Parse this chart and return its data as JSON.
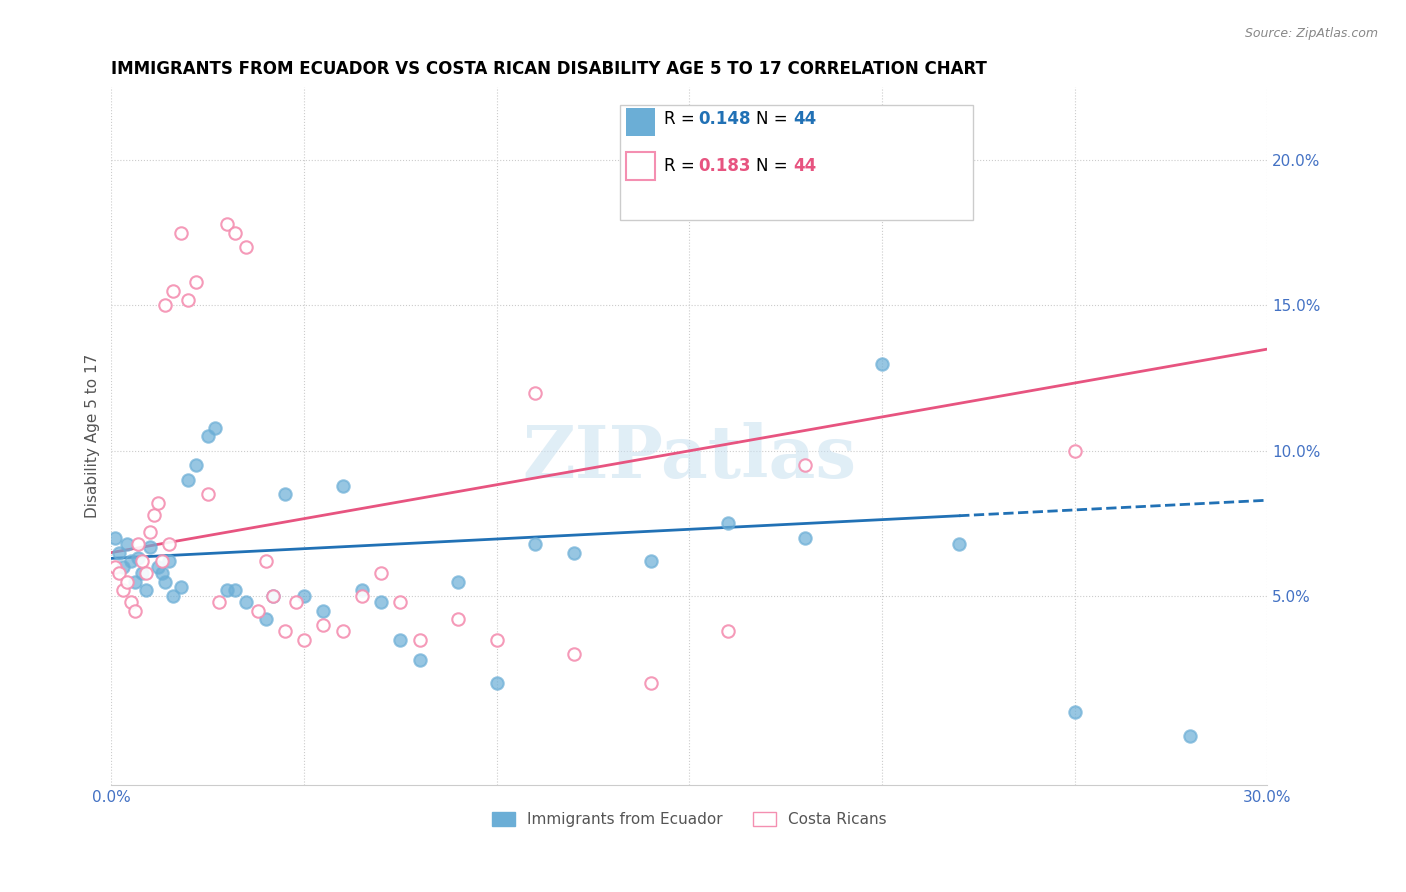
{
  "title": "IMMIGRANTS FROM ECUADOR VS COSTA RICAN DISABILITY AGE 5 TO 17 CORRELATION CHART",
  "source": "Source: ZipAtlas.com",
  "xlabel": "",
  "ylabel": "Disability Age 5 to 17",
  "xlim": [
    0.0,
    0.3
  ],
  "ylim": [
    -0.015,
    0.225
  ],
  "xticks": [
    0.0,
    0.05,
    0.1,
    0.15,
    0.2,
    0.25,
    0.3
  ],
  "yticks_right": [
    0.05,
    0.1,
    0.15,
    0.2
  ],
  "ytick_right_labels": [
    "5.0%",
    "10.0%",
    "15.0%",
    "20.0%"
  ],
  "legend_label1": "Immigrants from Ecuador",
  "legend_label2": "Costa Ricans",
  "color_blue": "#6baed6",
  "color_pink": "#f48fb1",
  "color_blue_dark": "#2171b5",
  "color_pink_dark": "#e75480",
  "watermark": "ZIPatlas",
  "ecuador_x": [
    0.001,
    0.002,
    0.003,
    0.004,
    0.005,
    0.006,
    0.007,
    0.008,
    0.009,
    0.01,
    0.012,
    0.013,
    0.014,
    0.015,
    0.016,
    0.018,
    0.02,
    0.022,
    0.025,
    0.027,
    0.03,
    0.032,
    0.035,
    0.04,
    0.042,
    0.045,
    0.05,
    0.055,
    0.06,
    0.065,
    0.07,
    0.075,
    0.08,
    0.09,
    0.1,
    0.11,
    0.12,
    0.14,
    0.16,
    0.18,
    0.2,
    0.22,
    0.25,
    0.28
  ],
  "ecuador_y": [
    0.07,
    0.065,
    0.06,
    0.068,
    0.062,
    0.055,
    0.063,
    0.058,
    0.052,
    0.067,
    0.06,
    0.058,
    0.055,
    0.062,
    0.05,
    0.053,
    0.09,
    0.095,
    0.105,
    0.108,
    0.052,
    0.052,
    0.048,
    0.042,
    0.05,
    0.085,
    0.05,
    0.045,
    0.088,
    0.052,
    0.048,
    0.035,
    0.028,
    0.055,
    0.02,
    0.068,
    0.065,
    0.062,
    0.075,
    0.07,
    0.13,
    0.068,
    0.01,
    0.002
  ],
  "costarica_x": [
    0.001,
    0.002,
    0.003,
    0.004,
    0.005,
    0.006,
    0.007,
    0.008,
    0.009,
    0.01,
    0.011,
    0.012,
    0.013,
    0.014,
    0.015,
    0.016,
    0.018,
    0.02,
    0.022,
    0.025,
    0.028,
    0.03,
    0.032,
    0.035,
    0.038,
    0.04,
    0.042,
    0.045,
    0.048,
    0.05,
    0.055,
    0.06,
    0.065,
    0.07,
    0.075,
    0.08,
    0.09,
    0.1,
    0.11,
    0.12,
    0.14,
    0.16,
    0.18,
    0.25
  ],
  "costarica_y": [
    0.06,
    0.058,
    0.052,
    0.055,
    0.048,
    0.045,
    0.068,
    0.062,
    0.058,
    0.072,
    0.078,
    0.082,
    0.062,
    0.15,
    0.068,
    0.155,
    0.175,
    0.152,
    0.158,
    0.085,
    0.048,
    0.178,
    0.175,
    0.17,
    0.045,
    0.062,
    0.05,
    0.038,
    0.048,
    0.035,
    0.04,
    0.038,
    0.05,
    0.058,
    0.048,
    0.035,
    0.042,
    0.035,
    0.12,
    0.03,
    0.02,
    0.038,
    0.095,
    0.1
  ],
  "trend_blue_x_start": 0.0,
  "trend_blue_x_end": 0.3,
  "trend_blue_y_start": 0.063,
  "trend_blue_y_end": 0.083,
  "trend_blue_solid_end": 0.22,
  "trend_pink_x_start": 0.0,
  "trend_pink_x_end": 0.3,
  "trend_pink_y_start": 0.065,
  "trend_pink_y_end": 0.135
}
